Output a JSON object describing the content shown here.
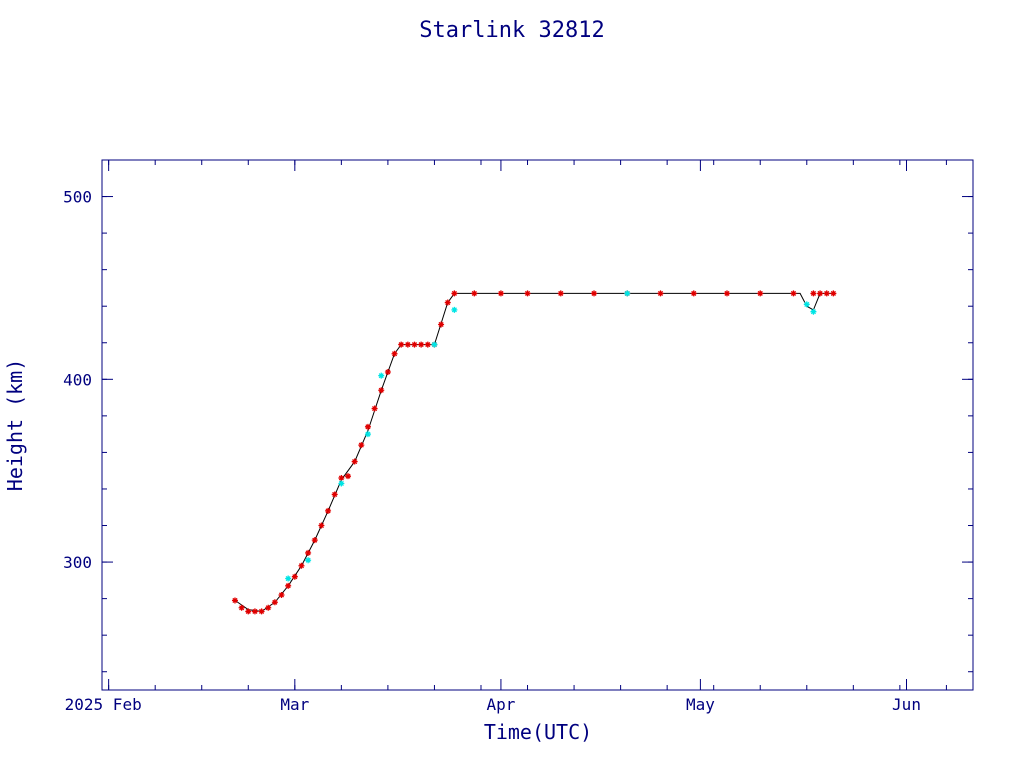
{
  "chart_data": {
    "type": "scatter",
    "title": "Starlink 32812",
    "xlabel": "Time(UTC)",
    "ylabel": "Height (km)",
    "xlim": [
      "2025-01-31",
      "2025-06-11"
    ],
    "ylim": [
      230,
      520
    ],
    "x_ticks": [
      {
        "date": "2025-02-01",
        "label": "2025 Feb"
      },
      {
        "date": "2025-03-01",
        "label": "Mar"
      },
      {
        "date": "2025-04-01",
        "label": "Apr"
      },
      {
        "date": "2025-05-01",
        "label": "May"
      },
      {
        "date": "2025-06-01",
        "label": "Jun"
      }
    ],
    "y_ticks": [
      300,
      400,
      500
    ],
    "grid": false,
    "colors": {
      "axis": "#00007f",
      "line": "#000000",
      "marker": "#e00000",
      "marker_alt": "#00e5e5"
    },
    "series": [
      {
        "color": "#e00000",
        "marker": "asterisk",
        "points": [
          [
            "2025-02-20",
            279
          ],
          [
            "2025-02-21",
            275
          ],
          [
            "2025-02-22",
            273
          ],
          [
            "2025-02-23",
            273
          ],
          [
            "2025-02-24",
            273
          ],
          [
            "2025-02-25",
            275
          ],
          [
            "2025-02-26",
            278
          ],
          [
            "2025-02-27",
            282
          ],
          [
            "2025-02-28",
            287
          ],
          [
            "2025-03-01",
            292
          ],
          [
            "2025-03-02",
            298
          ],
          [
            "2025-03-03",
            305
          ],
          [
            "2025-03-04",
            312
          ],
          [
            "2025-03-05",
            320
          ],
          [
            "2025-03-06",
            328
          ],
          [
            "2025-03-07",
            337
          ],
          [
            "2025-03-08",
            346
          ],
          [
            "2025-03-09",
            347
          ],
          [
            "2025-03-10",
            355
          ],
          [
            "2025-03-11",
            364
          ],
          [
            "2025-03-12",
            374
          ],
          [
            "2025-03-13",
            384
          ],
          [
            "2025-03-14",
            394
          ],
          [
            "2025-03-15",
            404
          ],
          [
            "2025-03-16",
            414
          ],
          [
            "2025-03-17",
            419
          ],
          [
            "2025-03-18",
            419
          ],
          [
            "2025-03-19",
            419
          ],
          [
            "2025-03-20",
            419
          ],
          [
            "2025-03-21",
            419
          ],
          [
            "2025-03-22",
            419
          ],
          [
            "2025-03-23",
            430
          ],
          [
            "2025-03-24",
            442
          ],
          [
            "2025-03-25",
            447
          ],
          [
            "2025-03-28",
            447
          ],
          [
            "2025-04-01",
            447
          ],
          [
            "2025-04-05",
            447
          ],
          [
            "2025-04-10",
            447
          ],
          [
            "2025-04-15",
            447
          ],
          [
            "2025-04-20",
            447
          ],
          [
            "2025-04-25",
            447
          ],
          [
            "2025-04-30",
            447
          ],
          [
            "2025-05-05",
            447
          ],
          [
            "2025-05-10",
            447
          ],
          [
            "2025-05-15",
            447
          ],
          [
            "2025-05-18",
            447
          ],
          [
            "2025-05-19",
            447
          ],
          [
            "2025-05-20",
            447
          ],
          [
            "2025-05-21",
            447
          ]
        ]
      },
      {
        "color": "#00e5e5",
        "marker": "asterisk",
        "points": [
          [
            "2025-02-28",
            291
          ],
          [
            "2025-03-03",
            301
          ],
          [
            "2025-03-08",
            343
          ],
          [
            "2025-03-12",
            370
          ],
          [
            "2025-03-14",
            402
          ],
          [
            "2025-03-22",
            419
          ],
          [
            "2025-03-25",
            438
          ],
          [
            "2025-04-20",
            447
          ],
          [
            "2025-05-17",
            441
          ],
          [
            "2025-05-18",
            437
          ]
        ]
      }
    ],
    "line": {
      "color": "#000000",
      "points": [
        [
          "2025-02-20",
          279
        ],
        [
          "2025-02-22",
          274
        ],
        [
          "2025-02-24",
          273
        ],
        [
          "2025-02-26",
          278
        ],
        [
          "2025-02-28",
          287
        ],
        [
          "2025-03-02",
          298
        ],
        [
          "2025-03-04",
          312
        ],
        [
          "2025-03-06",
          328
        ],
        [
          "2025-03-08",
          345
        ],
        [
          "2025-03-10",
          355
        ],
        [
          "2025-03-12",
          372
        ],
        [
          "2025-03-14",
          394
        ],
        [
          "2025-03-16",
          414
        ],
        [
          "2025-03-17",
          419
        ],
        [
          "2025-03-22",
          419
        ],
        [
          "2025-03-24",
          442
        ],
        [
          "2025-03-25",
          447
        ],
        [
          "2025-05-16",
          447
        ],
        [
          "2025-05-17",
          440
        ],
        [
          "2025-05-18",
          438
        ],
        [
          "2025-05-19",
          447
        ],
        [
          "2025-05-21",
          447
        ]
      ]
    }
  }
}
